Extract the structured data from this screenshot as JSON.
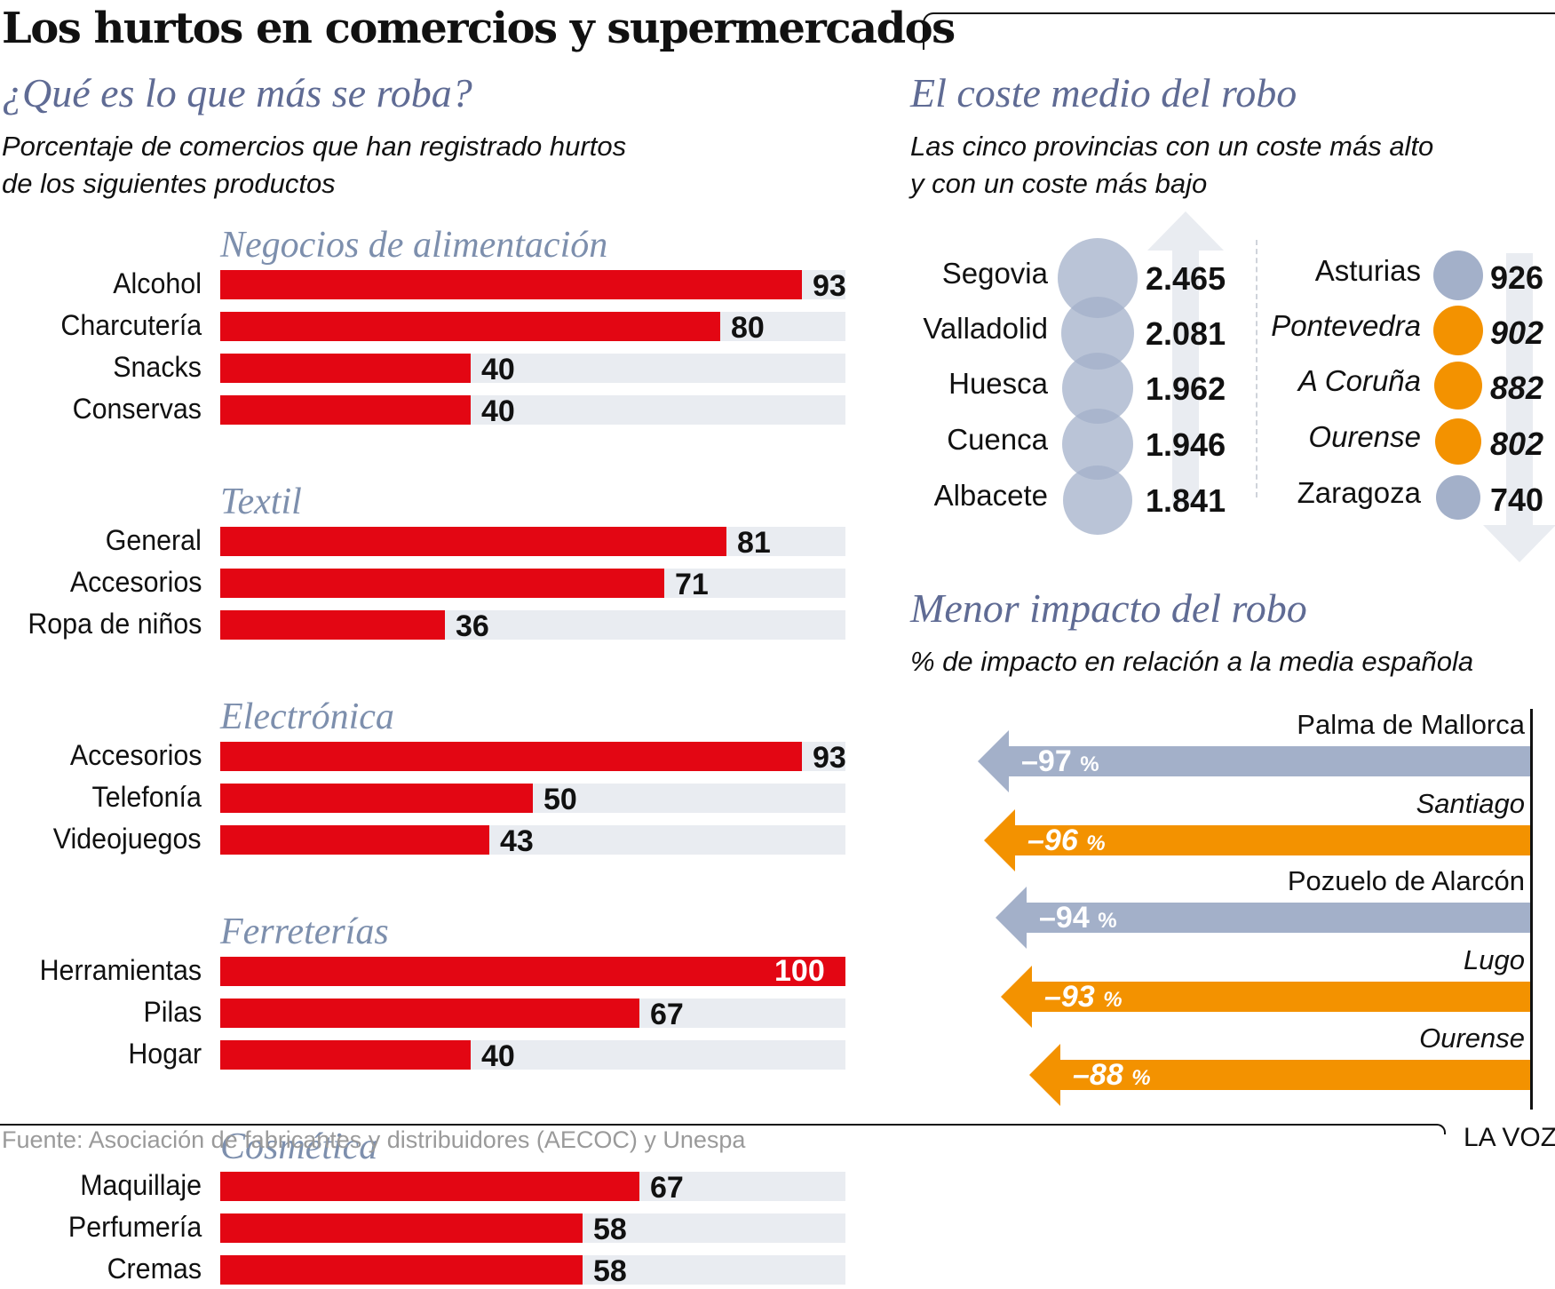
{
  "header": {
    "title": "Los hurtos en comercios y supermercados"
  },
  "left_panel": {
    "title": "¿Qué es lo que más se roba?",
    "subtitle_line1": "Porcentaje de comercios que han registrado hurtos",
    "subtitle_line2": "de los siguientes productos"
  },
  "cost_panel": {
    "title": "El coste medio del robo",
    "subtitle_line1": "Las cinco provincias con un coste más alto",
    "subtitle_line2": "y con un coste más bajo"
  },
  "impact_panel": {
    "title": "Menor impacto del robo",
    "subtitle": "% de impacto en relación a la media española"
  },
  "colors": {
    "bar": "#e30613",
    "track": "#e9ecf1",
    "blue_gray": "#a3b0c9",
    "orange": "#f39200",
    "heading": "#5f6b94",
    "category": "#7d8fad"
  },
  "chart_data": [
    {
      "type": "bar",
      "orientation": "horizontal",
      "title": "¿Qué es lo que más se roba?",
      "subtitle": "Porcentaje de comercios que han registrado hurtos de los siguientes productos",
      "xlim": [
        0,
        100
      ],
      "unit": "%",
      "groups": [
        {
          "name": "Negocios de alimentación",
          "items": [
            {
              "label": "Alcohol",
              "value": 93
            },
            {
              "label": "Charcutería",
              "value": 80
            },
            {
              "label": "Snacks",
              "value": 40
            },
            {
              "label": "Conservas",
              "value": 40
            }
          ]
        },
        {
          "name": "Textil",
          "items": [
            {
              "label": "General",
              "value": 81
            },
            {
              "label": "Accesorios",
              "value": 71
            },
            {
              "label": "Ropa de niños",
              "value": 36
            }
          ]
        },
        {
          "name": "Electrónica",
          "items": [
            {
              "label": "Accesorios",
              "value": 93
            },
            {
              "label": "Telefonía",
              "value": 50
            },
            {
              "label": "Videojuegos",
              "value": 43
            }
          ]
        },
        {
          "name": "Ferreterías",
          "items": [
            {
              "label": "Herramientas",
              "value": 100
            },
            {
              "label": "Pilas",
              "value": 67
            },
            {
              "label": "Hogar",
              "value": 40
            }
          ]
        },
        {
          "name": "Cosmética",
          "items": [
            {
              "label": "Maquillaje",
              "value": 67
            },
            {
              "label": "Perfumería",
              "value": 58
            },
            {
              "label": "Cremas",
              "value": 58
            }
          ]
        }
      ]
    },
    {
      "type": "scatter",
      "subtype": "proportional-circles",
      "title": "El coste medio del robo",
      "subtitle": "Las cinco provincias con un coste más alto y con un coste más bajo",
      "highest": [
        {
          "label": "Segovia",
          "value": 2465,
          "display": "2.465",
          "highlight": false
        },
        {
          "label": "Valladolid",
          "value": 2081,
          "display": "2.081",
          "highlight": false
        },
        {
          "label": "Huesca",
          "value": 1962,
          "display": "1.962",
          "highlight": false
        },
        {
          "label": "Cuenca",
          "value": 1946,
          "display": "1.946",
          "highlight": false
        },
        {
          "label": "Albacete",
          "value": 1841,
          "display": "1.841",
          "highlight": false
        }
      ],
      "lowest": [
        {
          "label": "Asturias",
          "value": 926,
          "display": "926",
          "highlight": false
        },
        {
          "label": "Pontevedra",
          "value": 902,
          "display": "902",
          "highlight": true
        },
        {
          "label": "A Coruña",
          "value": 882,
          "display": "882",
          "highlight": true
        },
        {
          "label": "Ourense",
          "value": 802,
          "display": "802",
          "highlight": true
        },
        {
          "label": "Zaragoza",
          "value": 740,
          "display": "740",
          "highlight": false
        }
      ]
    },
    {
      "type": "bar",
      "orientation": "horizontal",
      "subtype": "arrows",
      "title": "Menor impacto del robo",
      "subtitle": "% de impacto en relación a la media española",
      "unit": "%",
      "items": [
        {
          "label": "Palma de Mallorca",
          "value": -97,
          "display": "–97",
          "highlight": false
        },
        {
          "label": "Santiago",
          "value": -96,
          "display": "–96",
          "highlight": true
        },
        {
          "label": "Pozuelo de Alarcón",
          "value": -94,
          "display": "–94",
          "highlight": false
        },
        {
          "label": "Lugo",
          "value": -93,
          "display": "–93",
          "highlight": true
        },
        {
          "label": "Ourense",
          "value": -88,
          "display": "–88",
          "highlight": true
        }
      ]
    }
  ],
  "footer": {
    "source": "Fuente: Asociación de fabricantes y distribuidores (AECOC) y Unespa",
    "brand": "LA VOZ"
  }
}
